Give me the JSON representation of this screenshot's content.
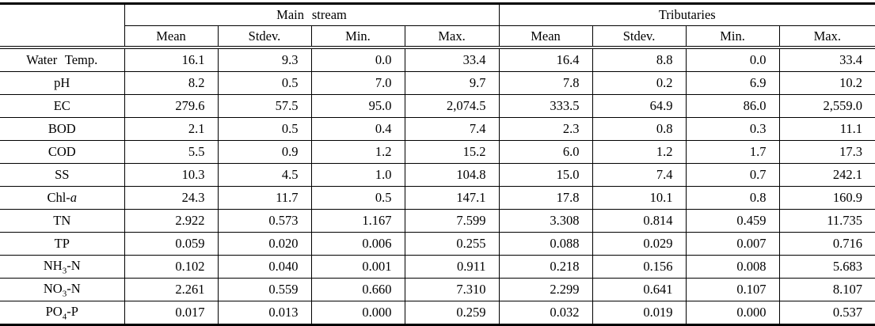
{
  "header": {
    "corner": "",
    "groups": [
      {
        "label": "Main stream"
      },
      {
        "label": "Tributaries"
      }
    ],
    "stat_columns": [
      "Mean",
      "Stdev.",
      "Min.",
      "Max."
    ]
  },
  "rows": [
    {
      "param_html": "Water Temp.",
      "values": [
        "16.1",
        "9.3",
        "0.0",
        "33.4",
        "16.4",
        "8.8",
        "0.0",
        "33.4"
      ]
    },
    {
      "param_html": "pH",
      "values": [
        "8.2",
        "0.5",
        "7.0",
        "9.7",
        "7.8",
        "0.2",
        "6.9",
        "10.2"
      ]
    },
    {
      "param_html": "EC",
      "values": [
        "279.6",
        "57.5",
        "95.0",
        "2,074.5",
        "333.5",
        "64.9",
        "86.0",
        "2,559.0"
      ]
    },
    {
      "param_html": "BOD",
      "values": [
        "2.1",
        "0.5",
        "0.4",
        "7.4",
        "2.3",
        "0.8",
        "0.3",
        "11.1"
      ]
    },
    {
      "param_html": "COD",
      "values": [
        "5.5",
        "0.9",
        "1.2",
        "15.2",
        "6.0",
        "1.2",
        "1.7",
        "17.3"
      ]
    },
    {
      "param_html": "SS",
      "values": [
        "10.3",
        "4.5",
        "1.0",
        "104.8",
        "15.0",
        "7.4",
        "0.7",
        "242.1"
      ]
    },
    {
      "param_html": "Chl-<i>a</i>",
      "values": [
        "24.3",
        "11.7",
        "0.5",
        "147.1",
        "17.8",
        "10.1",
        "0.8",
        "160.9"
      ]
    },
    {
      "param_html": "TN",
      "values": [
        "2.922",
        "0.573",
        "1.167",
        "7.599",
        "3.308",
        "0.814",
        "0.459",
        "11.735"
      ]
    },
    {
      "param_html": "TP",
      "values": [
        "0.059",
        "0.020",
        "0.006",
        "0.255",
        "0.088",
        "0.029",
        "0.007",
        "0.716"
      ]
    },
    {
      "param_html": "NH<sub>3</sub>-N",
      "values": [
        "0.102",
        "0.040",
        "0.001",
        "0.911",
        "0.218",
        "0.156",
        "0.008",
        "5.683"
      ]
    },
    {
      "param_html": "NO<sub>3</sub>-N",
      "values": [
        "2.261",
        "0.559",
        "0.660",
        "7.310",
        "2.299",
        "0.641",
        "0.107",
        "8.107"
      ]
    },
    {
      "param_html": "PO<sub>4</sub>-P",
      "values": [
        "0.017",
        "0.013",
        "0.000",
        "0.259",
        "0.032",
        "0.019",
        "0.000",
        "0.537"
      ]
    }
  ],
  "colors": {
    "line": "#000000",
    "text": "#000000",
    "background": "#ffffff"
  }
}
